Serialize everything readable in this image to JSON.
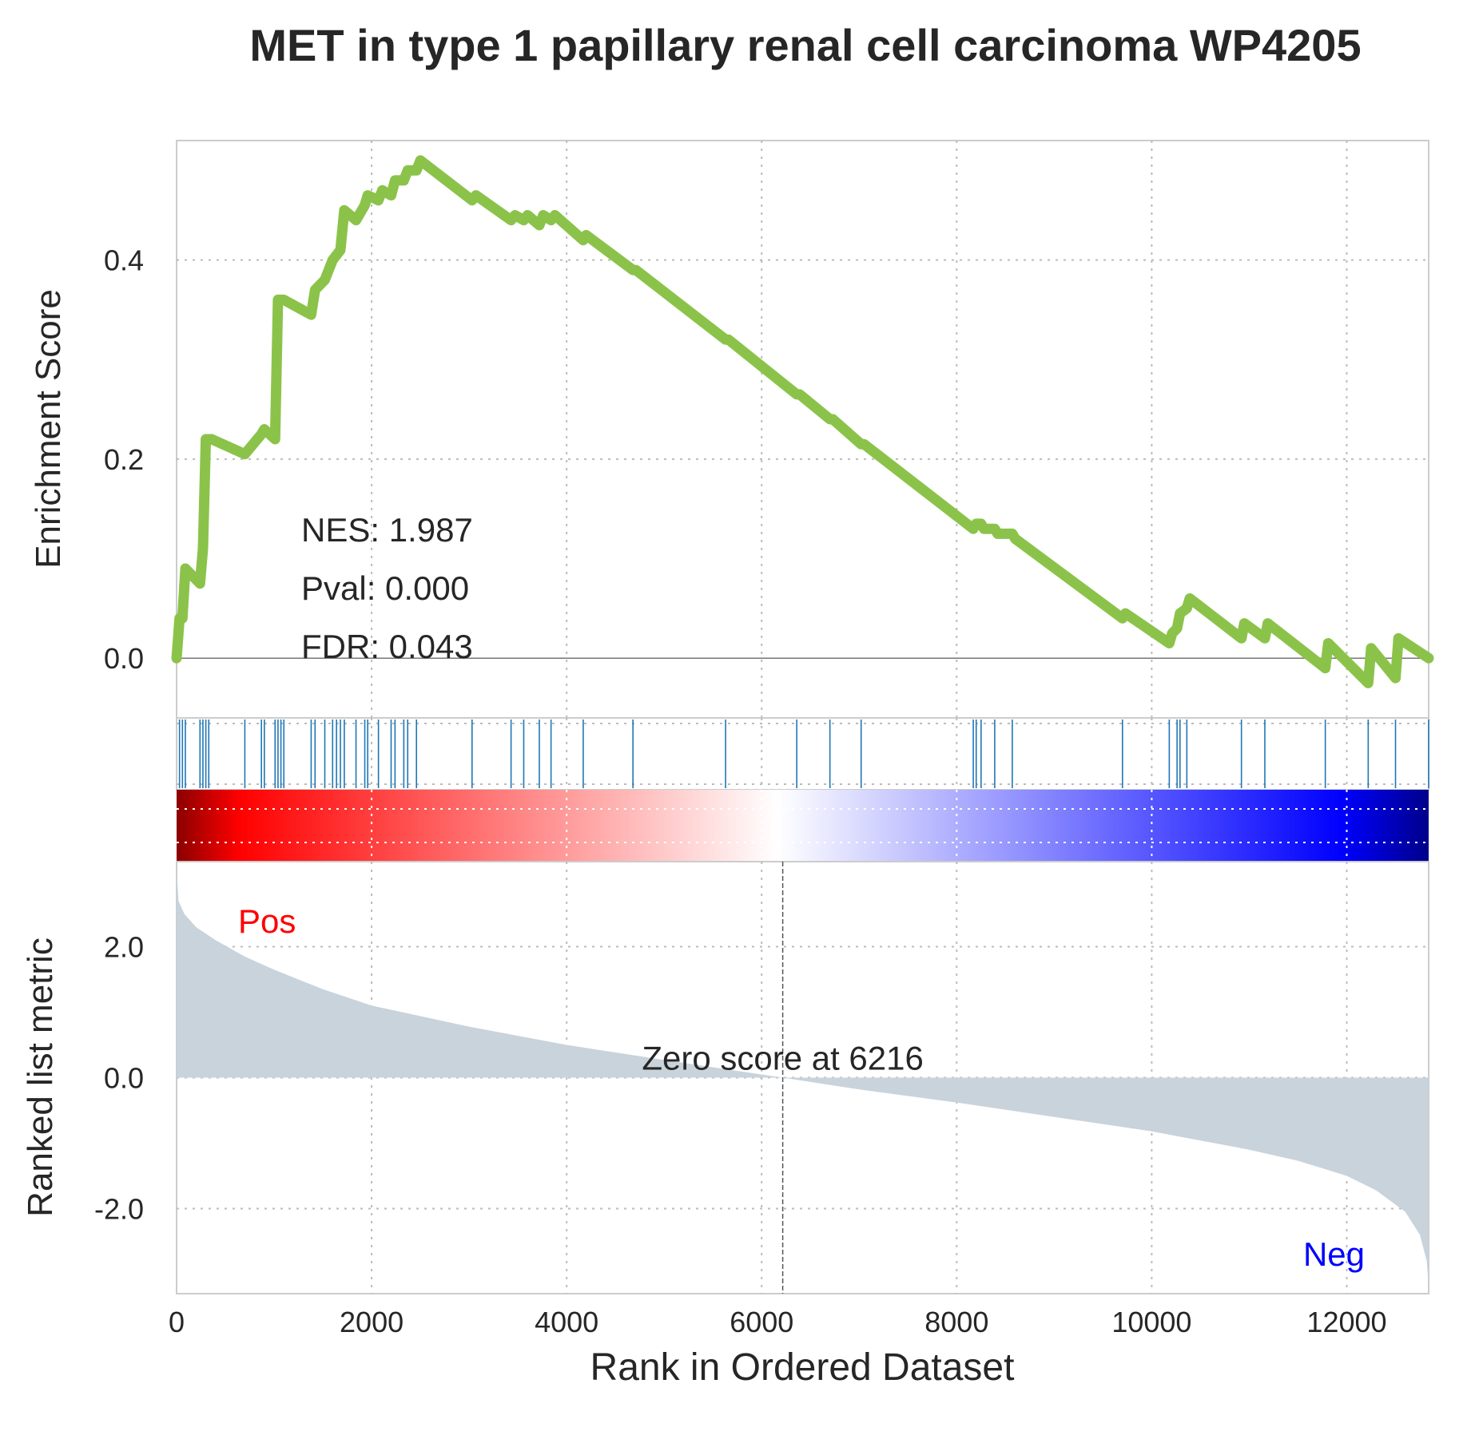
{
  "chart_data": {
    "type": "line",
    "title": "MET in type 1 papillary renal cell carcinoma WP4205",
    "xlabel": "Rank in Ordered Dataset",
    "x_ticks": [
      0,
      2000,
      4000,
      6000,
      8000,
      10000,
      12000
    ],
    "xlim": [
      0,
      12840
    ],
    "grid": true,
    "es_panel": {
      "ylabel": "Enrichment Score",
      "y_ticks": [
        0.0,
        0.2,
        0.4
      ],
      "y_tick_labels": [
        "0.0",
        "0.2",
        "0.4"
      ],
      "ylim": [
        -0.06,
        0.52
      ],
      "line_color": "#8bc34a",
      "series": [
        {
          "x": [
            0,
            30,
            60,
            90,
            240,
            270,
            300,
            360,
            700,
            870,
            900,
            1010,
            1040,
            1100,
            1380,
            1420,
            1520,
            1600,
            1680,
            1720,
            1840,
            1930,
            1960,
            2070,
            2110,
            2200,
            2240,
            2330,
            2370,
            2460,
            2500,
            3030,
            3070,
            3430,
            3470,
            3560,
            3600,
            3720,
            3760,
            3840,
            3880,
            4170,
            4200,
            4680,
            4710,
            5630,
            5660,
            6360,
            6390,
            6700,
            6730,
            7020,
            7050,
            8170,
            8200,
            8250,
            8280,
            8390,
            8420,
            8570,
            8600,
            9700,
            9730,
            10180,
            10210,
            10260,
            10290,
            10360,
            10390,
            10920,
            10950,
            11160,
            11190,
            11780,
            11810,
            12220,
            12250,
            12500,
            12530,
            12840
          ],
          "y": [
            0.0,
            0.04,
            0.04,
            0.09,
            0.075,
            0.11,
            0.22,
            0.22,
            0.205,
            0.225,
            0.23,
            0.22,
            0.36,
            0.36,
            0.345,
            0.37,
            0.38,
            0.4,
            0.41,
            0.45,
            0.44,
            0.455,
            0.465,
            0.46,
            0.47,
            0.465,
            0.48,
            0.48,
            0.49,
            0.49,
            0.5,
            0.46,
            0.465,
            0.44,
            0.445,
            0.44,
            0.445,
            0.435,
            0.445,
            0.44,
            0.445,
            0.42,
            0.425,
            0.39,
            0.39,
            0.32,
            0.32,
            0.265,
            0.265,
            0.24,
            0.24,
            0.215,
            0.215,
            0.13,
            0.135,
            0.135,
            0.13,
            0.13,
            0.125,
            0.125,
            0.12,
            0.04,
            0.045,
            0.015,
            0.025,
            0.03,
            0.045,
            0.05,
            0.06,
            0.02,
            0.035,
            0.02,
            0.035,
            -0.01,
            0.015,
            -0.025,
            0.01,
            -0.02,
            0.02,
            0.0
          ]
        }
      ],
      "annotations": [
        "NES: 1.987",
        "Pval: 0.000",
        "FDR: 0.043"
      ]
    },
    "hits": [
      30,
      60,
      90,
      240,
      270,
      300,
      330,
      700,
      870,
      900,
      1010,
      1040,
      1070,
      1100,
      1380,
      1420,
      1520,
      1600,
      1640,
      1680,
      1720,
      1840,
      1930,
      1960,
      2070,
      2200,
      2240,
      2330,
      2370,
      2460,
      3030,
      3430,
      3560,
      3720,
      3840,
      4170,
      4680,
      5630,
      6360,
      6700,
      7020,
      8170,
      8200,
      8250,
      8390,
      8570,
      9700,
      10180,
      10260,
      10290,
      10360,
      10920,
      11160,
      11780,
      12220,
      12500,
      12840
    ],
    "hit_color": "#1f77b4",
    "heatmap_colors": [
      "#8b0000",
      "#ff0000",
      "#ffffff",
      "#0000ff",
      "#00008b"
    ],
    "rank_panel": {
      "ylabel": "Ranked list metric",
      "y_ticks": [
        -2.0,
        0.0,
        2.0
      ],
      "y_tick_labels": [
        "-2.0",
        "0.0",
        "2.0"
      ],
      "ylim": [
        -3.3,
        3.3
      ],
      "fill_color": "#c9d3db",
      "pos_label": "Pos",
      "neg_label": "Neg",
      "pos_color": "#ff0000",
      "neg_color": "#0000ff",
      "zero_cross": 6216,
      "zero_label": "Zero score at 6216",
      "curve": {
        "x": [
          0,
          20,
          80,
          200,
          400,
          700,
          1000,
          1500,
          2000,
          3000,
          4000,
          5000,
          6216,
          7000,
          8000,
          9000,
          10000,
          11000,
          11500,
          12000,
          12300,
          12600,
          12750,
          12820,
          12840
        ],
        "y": [
          3.2,
          2.7,
          2.5,
          2.3,
          2.1,
          1.85,
          1.65,
          1.35,
          1.1,
          0.78,
          0.5,
          0.27,
          0.0,
          -0.18,
          -0.38,
          -0.6,
          -0.82,
          -1.1,
          -1.27,
          -1.5,
          -1.72,
          -2.05,
          -2.4,
          -2.8,
          -3.2
        ]
      }
    }
  }
}
